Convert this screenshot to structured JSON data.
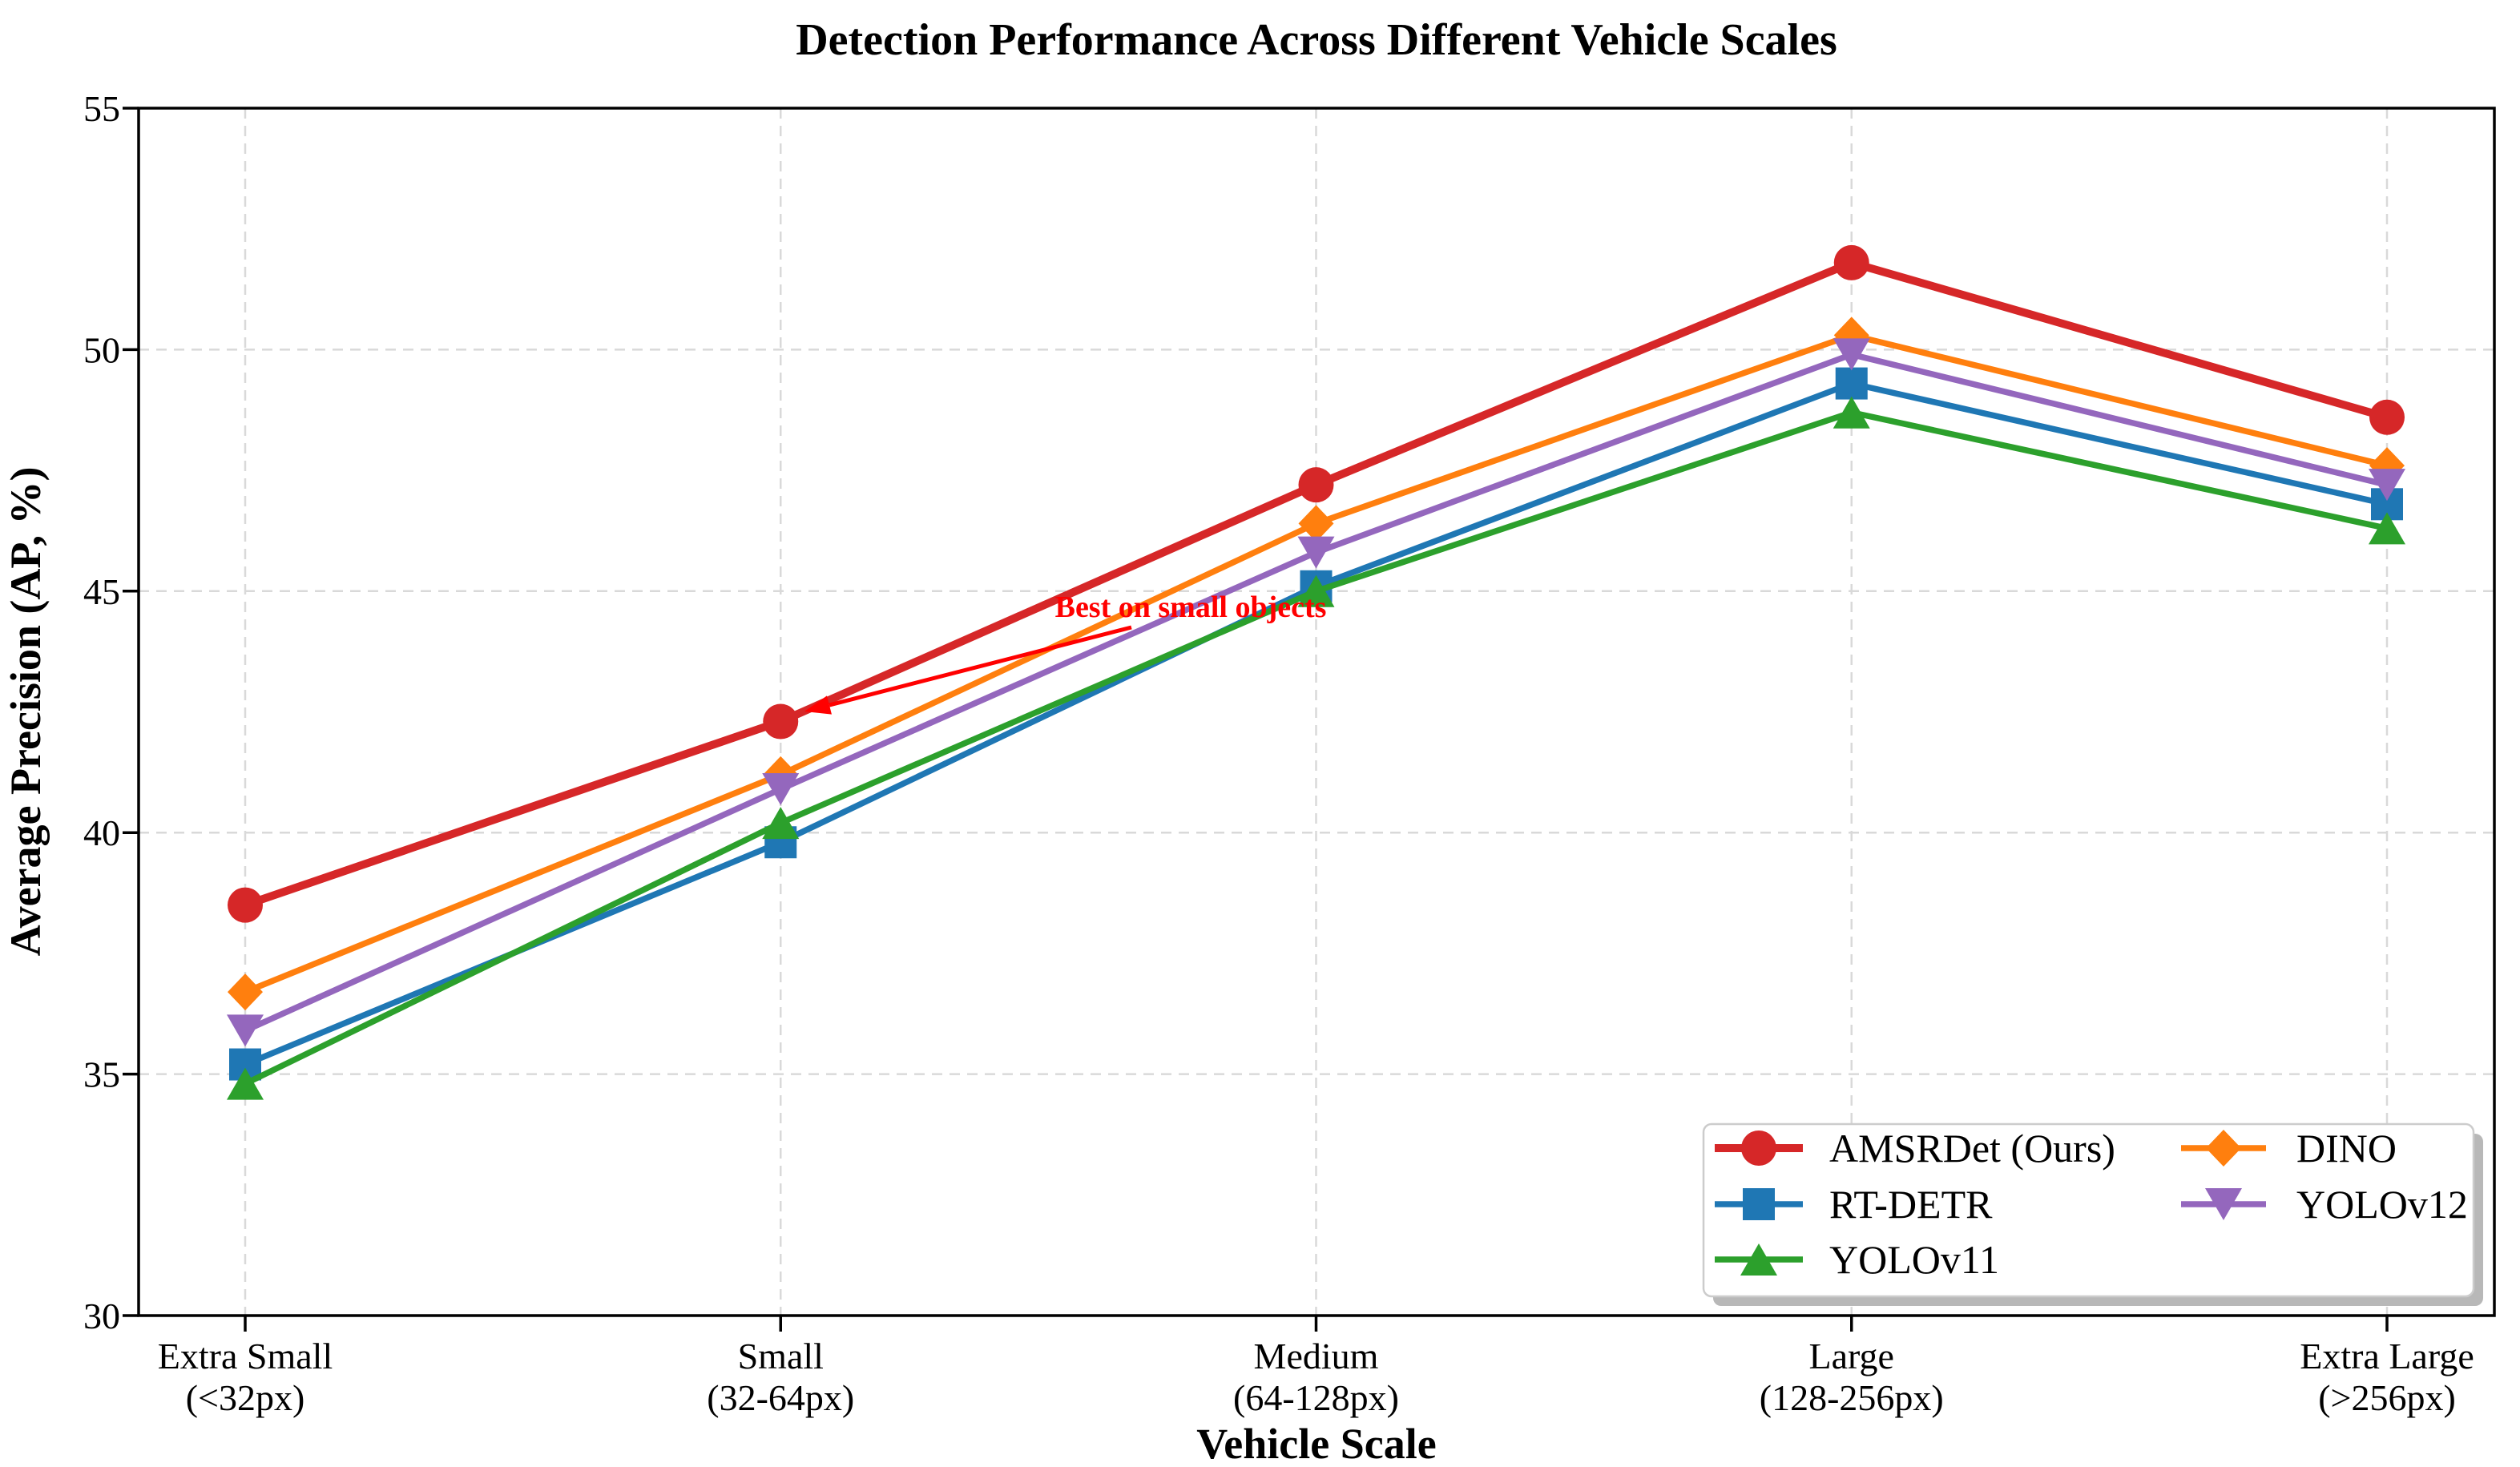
{
  "figure": {
    "background": "#ffffff"
  },
  "chart_data": {
    "type": "line",
    "title": "Detection Performance Across Different Vehicle Scales",
    "xlabel": "Vehicle Scale",
    "ylabel": "Average Precision (AP, %)",
    "ylim": [
      30,
      55
    ],
    "yticks": [
      30,
      35,
      40,
      45,
      50,
      55
    ],
    "grid": true,
    "grid_style": "dashed",
    "grid_color": "#d9d9d9",
    "spine_color": "#000000",
    "categories": [
      "Extra Small",
      "Small",
      "Medium",
      "Large",
      "Extra Large"
    ],
    "category_sublabels": [
      "(<32px)",
      "(32-64px)",
      "(64-128px)",
      "(128-256px)",
      "(>256px)"
    ],
    "series": [
      {
        "name": "AMSRDet (Ours)",
        "color": "#d62728",
        "marker": "circle",
        "linewidth": 10,
        "values": [
          38.5,
          42.3,
          47.2,
          51.8,
          48.6
        ]
      },
      {
        "name": "RT-DETR",
        "color": "#1f77b4",
        "marker": "square",
        "linewidth": 7.5,
        "values": [
          35.2,
          39.8,
          45.1,
          49.3,
          46.8
        ]
      },
      {
        "name": "YOLOv11",
        "color": "#2ca02c",
        "marker": "triangle-up",
        "linewidth": 7.5,
        "values": [
          34.8,
          40.2,
          45.0,
          48.7,
          46.3
        ]
      },
      {
        "name": "DINO",
        "color": "#ff7f0e",
        "marker": "diamond",
        "linewidth": 7.5,
        "values": [
          36.7,
          41.2,
          46.4,
          50.3,
          47.6
        ]
      },
      {
        "name": "YOLOv12",
        "color": "#9467bd",
        "marker": "triangle-down",
        "linewidth": 7.5,
        "values": [
          35.9,
          40.9,
          45.8,
          49.9,
          47.2
        ]
      }
    ],
    "annotation": {
      "text": "Best on small objects",
      "color": "#ff0000",
      "target_category": "Small",
      "target_value": 42.3
    },
    "legend": {
      "position": "lower right",
      "ncol": 2,
      "entries": [
        "AMSRDet (Ours)",
        "RT-DETR",
        "YOLOv11",
        "DINO",
        "YOLOv12"
      ]
    }
  }
}
